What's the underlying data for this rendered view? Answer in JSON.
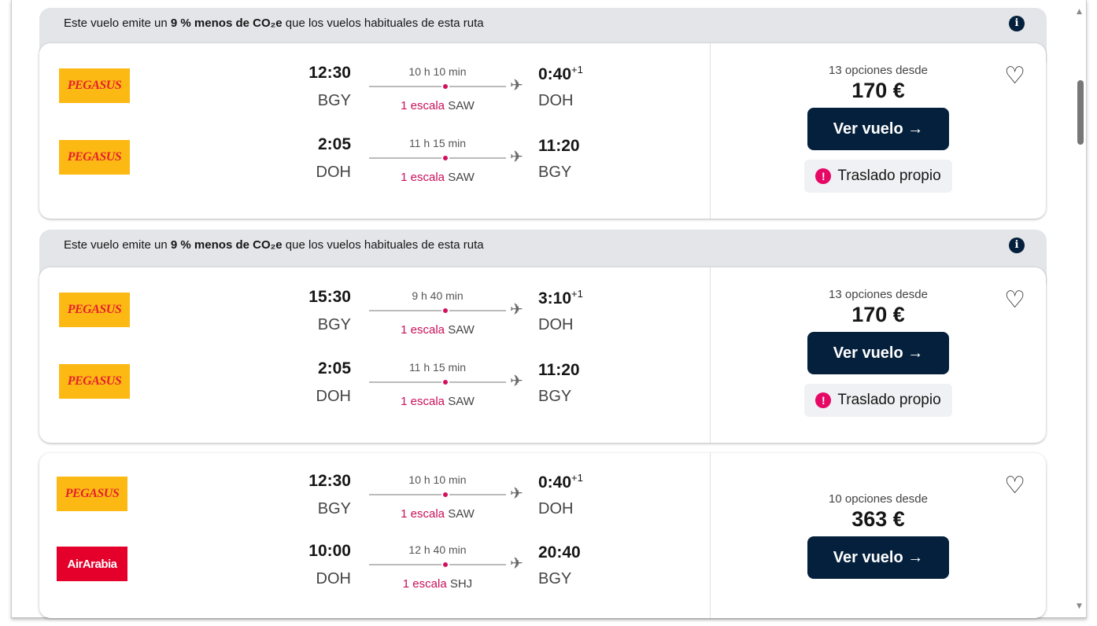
{
  "results": [
    {
      "co2_banner": {
        "prefix": "Este vuelo emite un ",
        "bold": "9 % menos de CO₂e",
        "suffix": " que los vuelos habituales de esta ruta"
      },
      "legs": [
        {
          "airline": "PEGASUS",
          "airline_class": "pegasus",
          "dep_time": "12:30",
          "dep_code": "BGY",
          "duration": "10 h 10 min",
          "stops": "1 escala",
          "stop_code": "SAW",
          "arr_time": "0:40",
          "day_offset": "+1",
          "arr_code": "DOH"
        },
        {
          "airline": "PEGASUS",
          "airline_class": "pegasus",
          "dep_time": "2:05",
          "dep_code": "DOH",
          "duration": "11 h 15 min",
          "stops": "1 escala",
          "stop_code": "SAW",
          "arr_time": "11:20",
          "day_offset": "",
          "arr_code": "BGY"
        }
      ],
      "options": "13 opciones desde",
      "price": "170 €",
      "button": "Ver vuelo →",
      "warning": "Traslado propio"
    },
    {
      "co2_banner": {
        "prefix": "Este vuelo emite un ",
        "bold": "9 % menos de CO₂e",
        "suffix": " que los vuelos habituales de esta ruta"
      },
      "legs": [
        {
          "airline": "PEGASUS",
          "airline_class": "pegasus",
          "dep_time": "15:30",
          "dep_code": "BGY",
          "duration": "9 h 40 min",
          "stops": "1 escala",
          "stop_code": "SAW",
          "arr_time": "3:10",
          "day_offset": "+1",
          "arr_code": "DOH"
        },
        {
          "airline": "PEGASUS",
          "airline_class": "pegasus",
          "dep_time": "2:05",
          "dep_code": "DOH",
          "duration": "11 h 15 min",
          "stops": "1 escala",
          "stop_code": "SAW",
          "arr_time": "11:20",
          "day_offset": "",
          "arr_code": "BGY"
        }
      ],
      "options": "13 opciones desde",
      "price": "170 €",
      "button": "Ver vuelo →",
      "warning": "Traslado propio"
    },
    {
      "co2_banner": null,
      "legs": [
        {
          "airline": "PEGASUS",
          "airline_class": "pegasus",
          "dep_time": "12:30",
          "dep_code": "BGY",
          "duration": "10 h 10 min",
          "stops": "1 escala",
          "stop_code": "SAW",
          "arr_time": "0:40",
          "day_offset": "+1",
          "arr_code": "DOH"
        },
        {
          "airline": "AirArabia",
          "airline_class": "airarabia",
          "dep_time": "10:00",
          "dep_code": "DOH",
          "duration": "12 h 40 min",
          "stops": "1 escala",
          "stop_code": "SHJ",
          "arr_time": "20:40",
          "day_offset": "",
          "arr_code": "BGY"
        }
      ],
      "options": "10 opciones desde",
      "price": "363 €",
      "button": "Ver vuelo →",
      "warning": null
    }
  ],
  "colors": {
    "primary": "#05203c",
    "stop_accent": "#c8105a",
    "warning": "#e70866",
    "banner": "#e3e5e9"
  }
}
